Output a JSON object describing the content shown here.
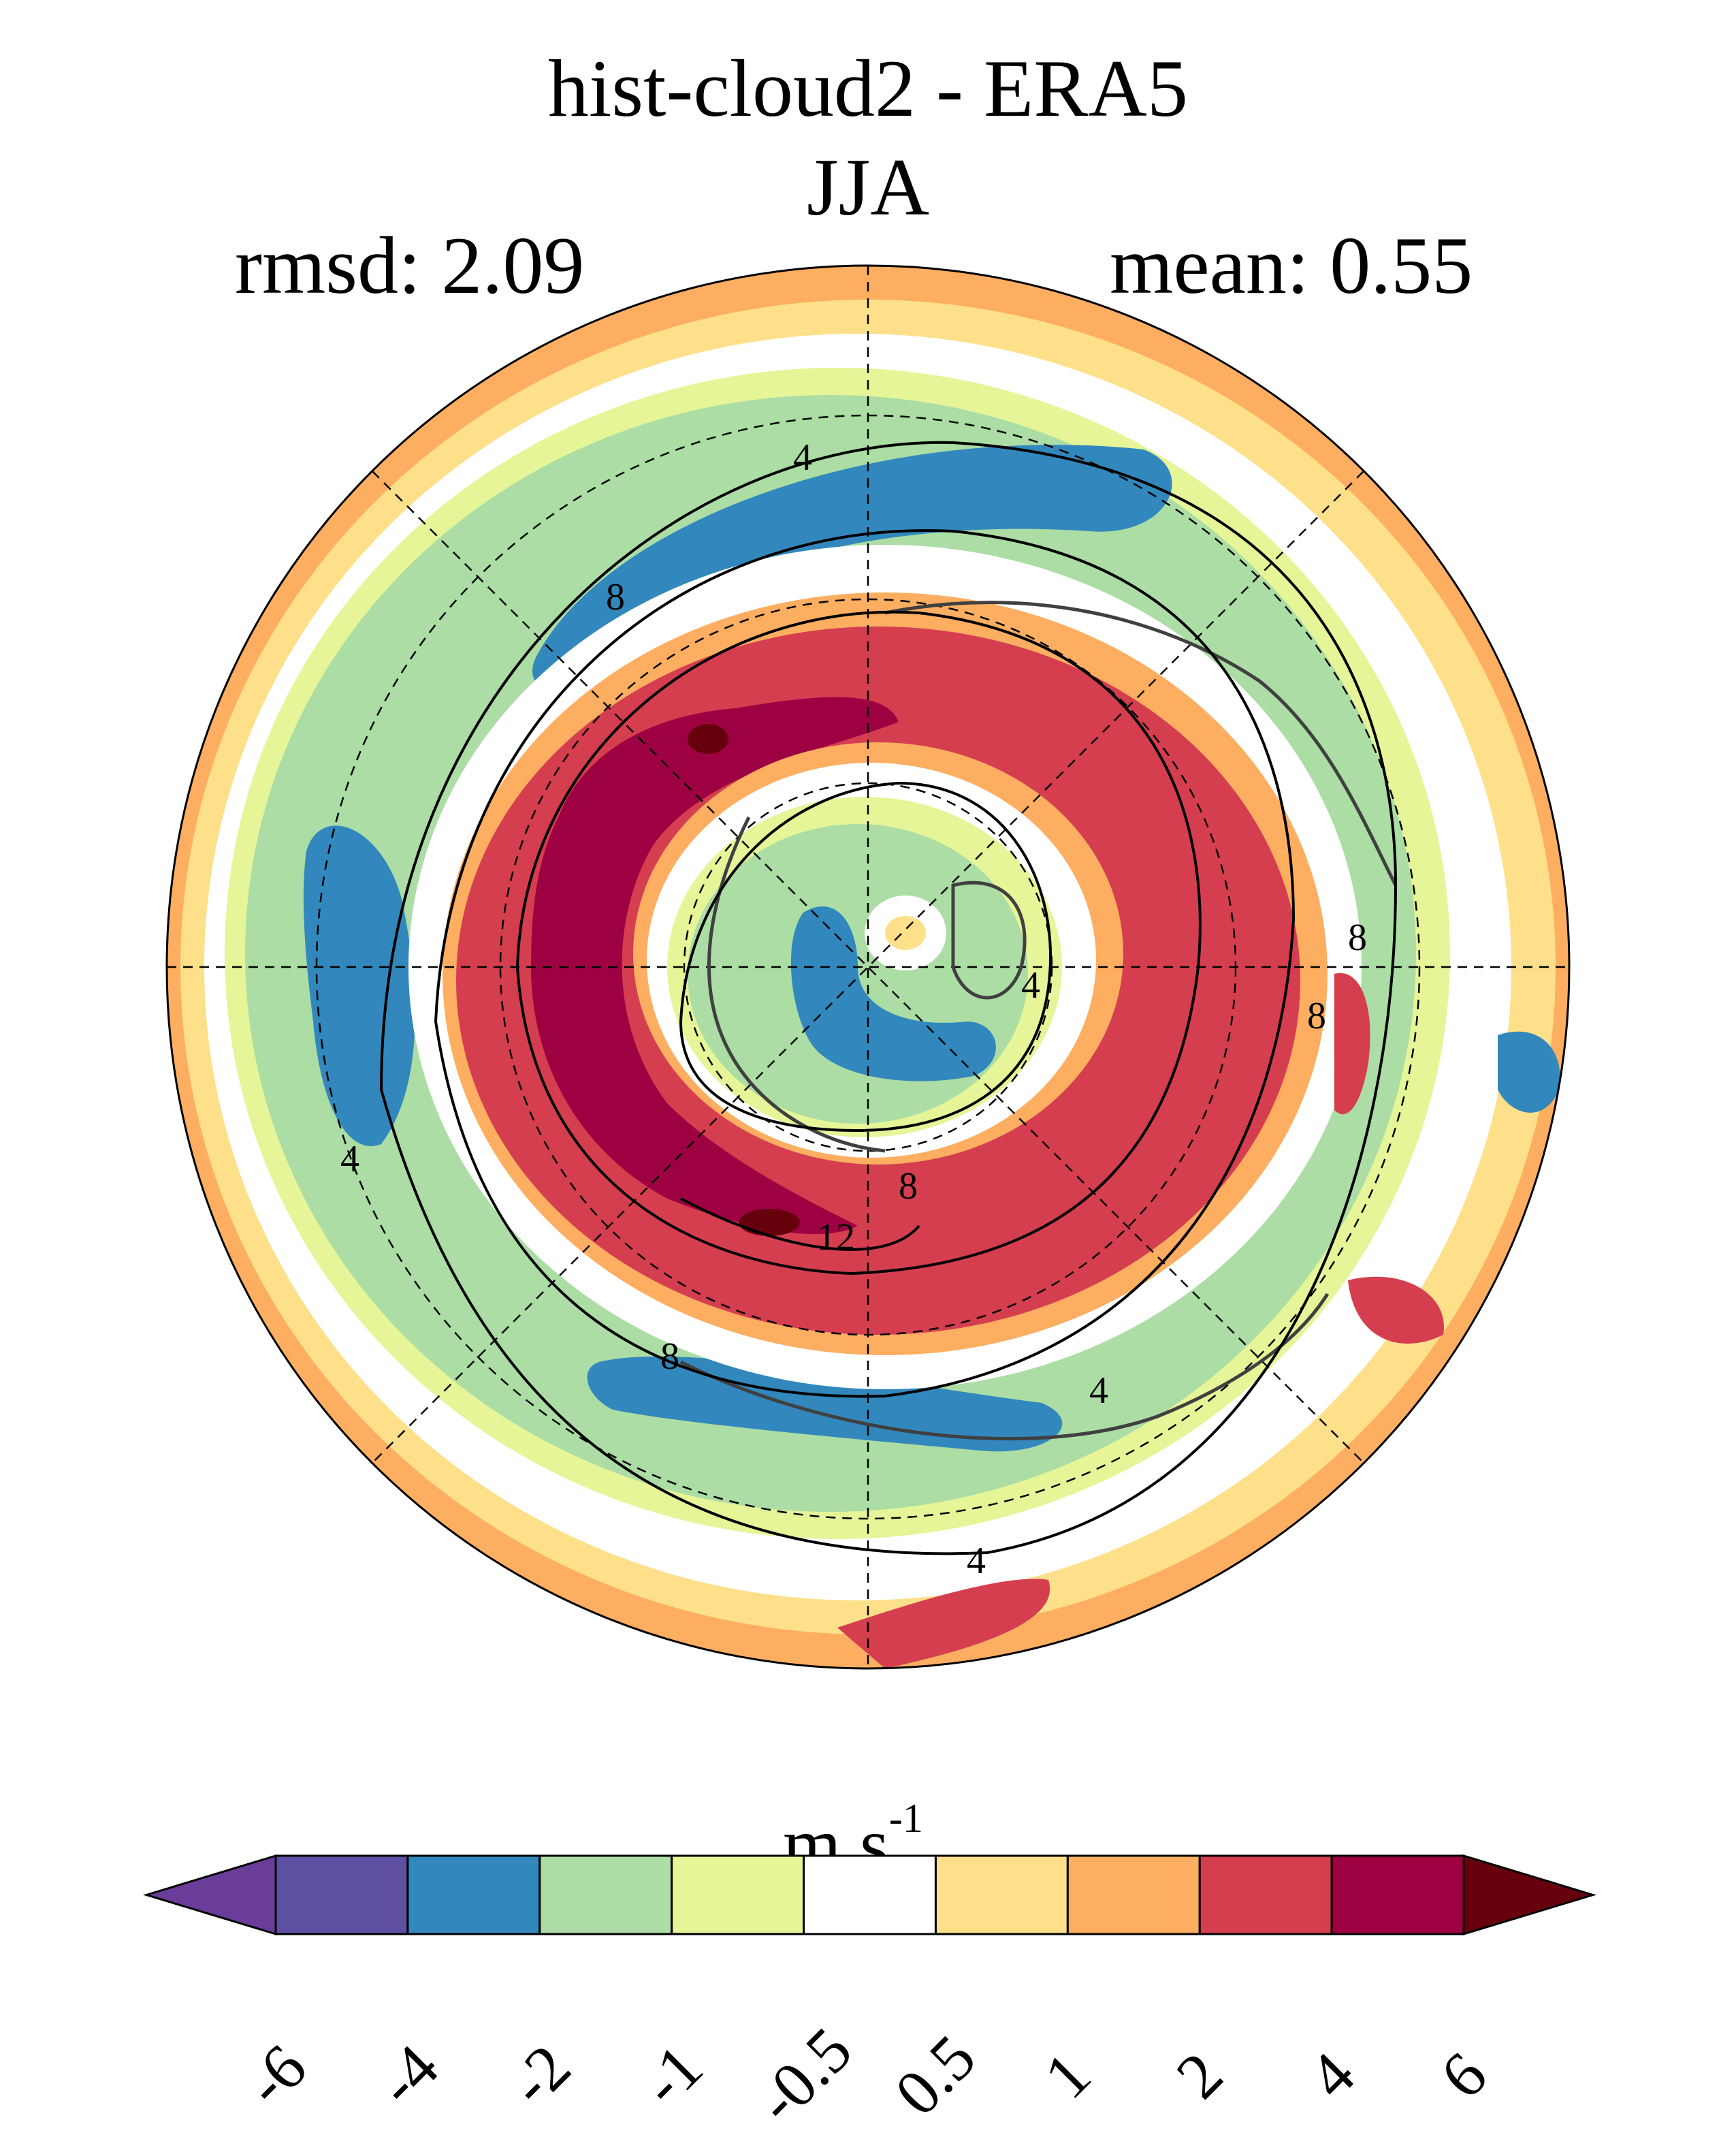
{
  "title": {
    "line1": "hist-cloud2 - ERA5",
    "line2": "JJA"
  },
  "stats": {
    "rmsd_label": "rmsd: 2.09",
    "mean_label": "mean: 0.55"
  },
  "map": {
    "projection": "north polar stereographic",
    "contour_labels": [
      "4",
      "8",
      "8",
      "4",
      "4",
      "8",
      "8",
      "12",
      "4",
      "8",
      "4"
    ],
    "colors": {
      "neg6": "#6a3d9a",
      "neg4": "#5e4fa2",
      "neg2": "#3288bd",
      "neg1": "#abdda4",
      "neg05": "#e6f598",
      "zero": "#ffffff",
      "pos05": "#fee08b",
      "pos1": "#fdae61",
      "pos2": "#d53e4f",
      "pos4": "#9e0142",
      "pos6": "#67000d"
    }
  },
  "colorbar": {
    "units_main": "m s",
    "units_exp": "-1",
    "ticks": [
      "-6",
      "-4",
      "-2",
      "-1",
      "-0.5",
      "0.5",
      "1",
      "2",
      "4",
      "6"
    ],
    "colors": [
      "#6a3d9a",
      "#5e4fa2",
      "#3288bd",
      "#abdda4",
      "#e6f598",
      "#ffffff",
      "#fee08b",
      "#fdae61",
      "#d53e4f",
      "#9e0142",
      "#67000d"
    ]
  }
}
